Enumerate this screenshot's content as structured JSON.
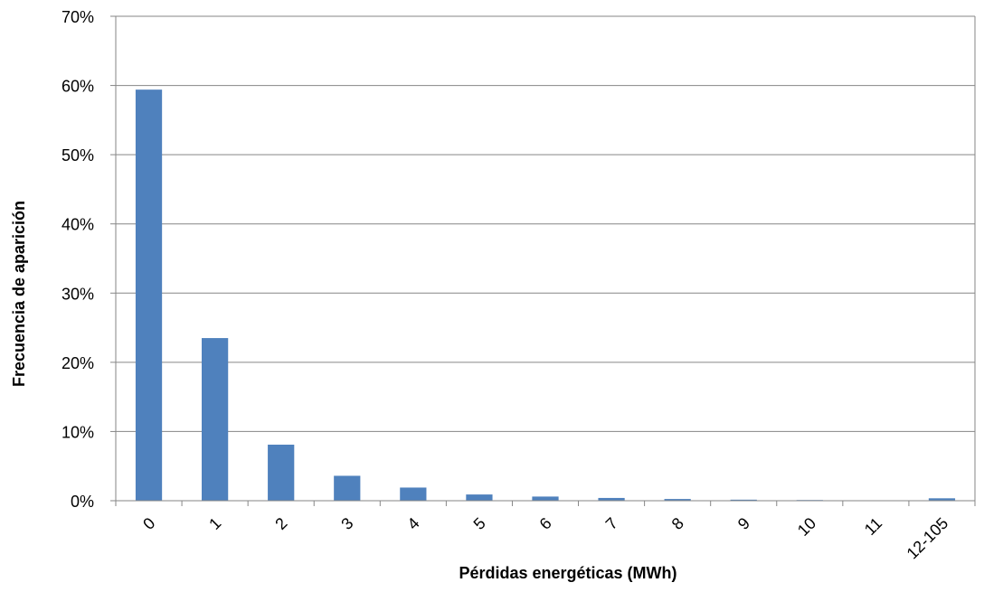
{
  "chart_data": {
    "type": "bar",
    "title": "",
    "xlabel": "Pérdidas energéticas (MWh)",
    "ylabel": "Frecuencia de aparición",
    "categories": [
      "0",
      "1",
      "2",
      "3",
      "4",
      "5",
      "6",
      "7",
      "8",
      "9",
      "10",
      "11",
      "12-105"
    ],
    "values": [
      59.4,
      23.5,
      8.1,
      3.6,
      1.9,
      0.9,
      0.6,
      0.4,
      0.25,
      0.15,
      0.1,
      0.05,
      0.35
    ],
    "ylim": [
      0,
      70
    ],
    "yticks": [
      0,
      10,
      20,
      30,
      40,
      50,
      60,
      70
    ],
    "ytick_labels": [
      "0%",
      "10%",
      "20%",
      "30%",
      "40%",
      "50%",
      "60%",
      "70%"
    ],
    "grid": true,
    "legend": "none",
    "colors": {
      "bar": "#4F81BD",
      "grid": "#868686",
      "axis": "#868686"
    }
  }
}
